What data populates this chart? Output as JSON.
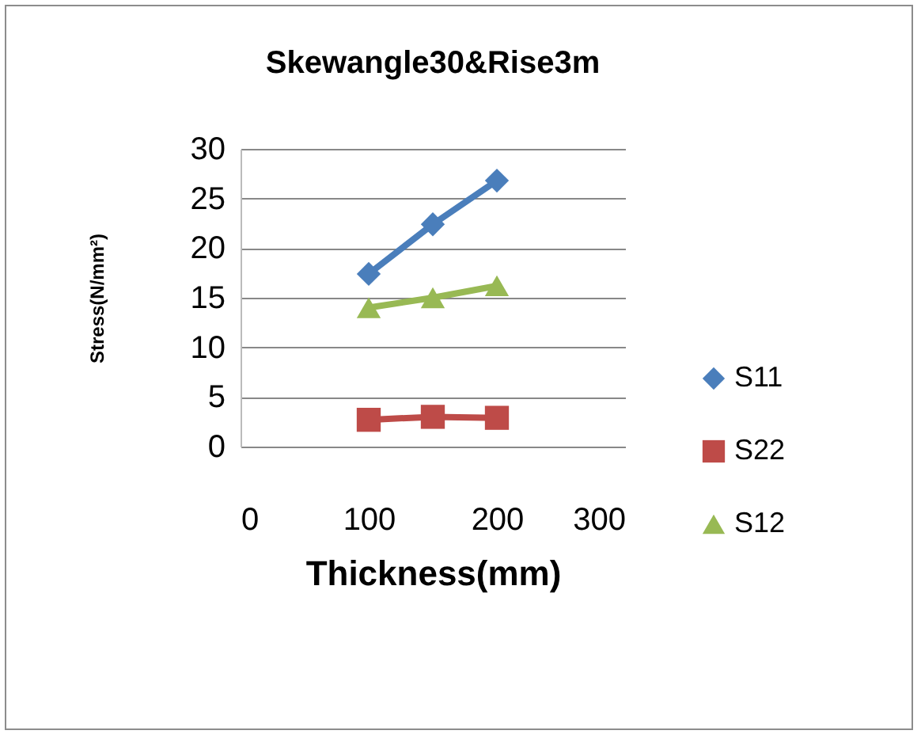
{
  "chart_data": {
    "type": "line",
    "title": "Skewangle30&Rise3m",
    "xlabel": "Thickness(mm)",
    "ylabel": "Stress(N/mm²)",
    "x": [
      100,
      150,
      200
    ],
    "series": [
      {
        "name": "S11",
        "color": "#4a7ebb",
        "marker": "diamond",
        "values": [
          17.4,
          22.4,
          26.8
        ]
      },
      {
        "name": "S22",
        "color": "#be4b48",
        "marker": "square",
        "values": [
          2.7,
          3.0,
          2.9
        ]
      },
      {
        "name": "S12",
        "color": "#98b954",
        "marker": "triangle",
        "values": [
          14.0,
          15.0,
          16.2
        ]
      }
    ],
    "xlim": [
      0,
      300
    ],
    "xticks": [
      0,
      100,
      200,
      300
    ],
    "ylim": [
      0,
      30
    ],
    "yticks": [
      0,
      5,
      10,
      15,
      20,
      25,
      30
    ],
    "grid": "y",
    "legend": "right",
    "line_style": "solid"
  }
}
